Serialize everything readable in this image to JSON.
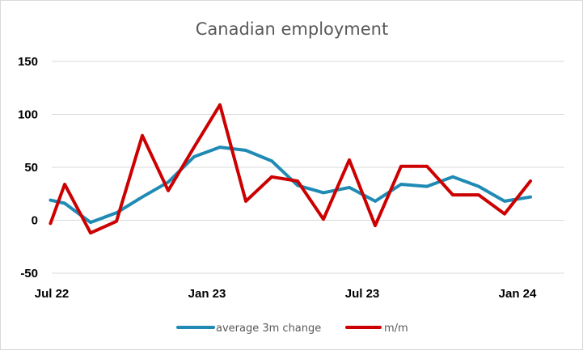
{
  "chart_data": {
    "type": "line",
    "title": "Canadian employment",
    "xlabel": "",
    "ylabel": "",
    "ylim": [
      -50,
      150
    ],
    "yticks": [
      -50,
      0,
      50,
      100,
      150
    ],
    "grid": true,
    "legend_position": "bottom",
    "x": [
      "2022-07",
      "2022-08",
      "2022-09",
      "2022-10",
      "2022-11",
      "2022-12",
      "2023-01",
      "2023-02",
      "2023-03",
      "2023-04",
      "2023-05",
      "2023-06",
      "2023-07",
      "2023-08",
      "2023-09",
      "2023-10",
      "2023-11",
      "2023-12",
      "2024-01"
    ],
    "x_tick_labels": [
      {
        "index": 0,
        "label": "Jul 22"
      },
      {
        "index": 6,
        "label": "Jan 23"
      },
      {
        "index": 12,
        "label": "Jul 23"
      },
      {
        "index": 18,
        "label": "Jan 24"
      }
    ],
    "series": [
      {
        "name": "average 3m change",
        "color": "#1f8bb5",
        "x": [
          -0.05,
          0.5,
          1.5,
          2.5,
          3.5,
          4.5,
          5.5,
          6.5,
          7.5,
          8.5,
          9.5,
          10.5,
          11.5,
          12.5,
          13.5,
          14.5,
          15.5,
          16.5,
          17.5,
          18.5
        ],
        "values": [
          19,
          16,
          -2,
          7,
          22,
          36,
          60,
          69,
          66,
          56,
          33,
          26,
          31,
          18,
          34,
          32,
          41,
          32,
          18,
          22
        ]
      },
      {
        "name": "m/m",
        "color": "#cc0000",
        "x": [
          -0.05,
          0.5,
          1.5,
          2.5,
          3.5,
          4.5,
          5.5,
          6.5,
          7.5,
          8.5,
          9.5,
          10.5,
          11.5,
          12.5,
          13.5,
          14.5,
          15.5,
          16.5,
          17.5,
          18.5
        ],
        "values": [
          -3,
          34,
          -12,
          -1,
          80,
          28,
          69,
          109,
          18,
          41,
          37,
          1,
          57,
          -5,
          51,
          51,
          24,
          24,
          6,
          37
        ]
      }
    ]
  }
}
